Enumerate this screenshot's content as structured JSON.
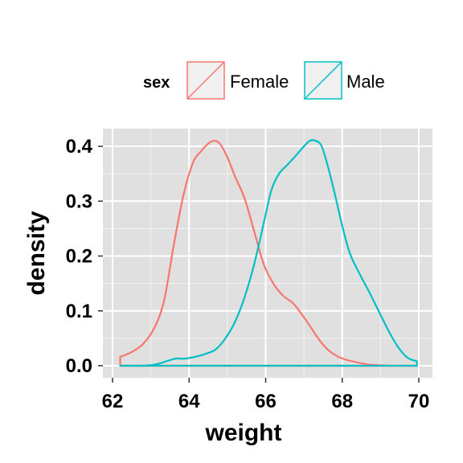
{
  "chart_data": {
    "type": "area",
    "xlabel": "weight",
    "ylabel": "density",
    "xlim": [
      62,
      70
    ],
    "ylim": [
      0,
      0.42
    ],
    "x_ticks": [
      "62",
      "64",
      "66",
      "68",
      "70"
    ],
    "y_ticks": [
      "0.0",
      "0.1",
      "0.2",
      "0.3",
      "0.4"
    ],
    "grid": true,
    "panel_background": "#e0e0e0",
    "legend": {
      "title": "sex",
      "position": "top"
    },
    "series": [
      {
        "name": "Female",
        "color": "#f8766d",
        "points": [
          [
            62.2,
            0.016
          ],
          [
            62.5,
            0.025
          ],
          [
            62.8,
            0.04
          ],
          [
            63.1,
            0.07
          ],
          [
            63.35,
            0.12
          ],
          [
            63.6,
            0.22
          ],
          [
            63.85,
            0.31
          ],
          [
            64.1,
            0.37
          ],
          [
            64.3,
            0.39
          ],
          [
            64.5,
            0.405
          ],
          [
            64.65,
            0.41
          ],
          [
            64.8,
            0.405
          ],
          [
            65.0,
            0.38
          ],
          [
            65.2,
            0.345
          ],
          [
            65.45,
            0.305
          ],
          [
            65.7,
            0.245
          ],
          [
            65.95,
            0.185
          ],
          [
            66.2,
            0.15
          ],
          [
            66.45,
            0.128
          ],
          [
            66.7,
            0.115
          ],
          [
            66.9,
            0.098
          ],
          [
            67.15,
            0.073
          ],
          [
            67.4,
            0.047
          ],
          [
            67.6,
            0.031
          ],
          [
            67.85,
            0.018
          ],
          [
            68.1,
            0.011
          ],
          [
            68.4,
            0.006
          ],
          [
            68.7,
            0.002
          ],
          [
            69.0,
            0.001
          ],
          [
            69.3,
            0.0
          ],
          [
            69.95,
            0.0
          ]
        ]
      },
      {
        "name": "Male",
        "color": "#00bfc4",
        "points": [
          [
            62.2,
            0.0
          ],
          [
            62.8,
            0.0
          ],
          [
            63.1,
            0.002
          ],
          [
            63.4,
            0.008
          ],
          [
            63.65,
            0.013
          ],
          [
            63.9,
            0.013
          ],
          [
            64.2,
            0.017
          ],
          [
            64.45,
            0.022
          ],
          [
            64.7,
            0.03
          ],
          [
            64.95,
            0.05
          ],
          [
            65.2,
            0.08
          ],
          [
            65.45,
            0.125
          ],
          [
            65.7,
            0.185
          ],
          [
            65.95,
            0.26
          ],
          [
            66.15,
            0.32
          ],
          [
            66.35,
            0.35
          ],
          [
            66.55,
            0.365
          ],
          [
            66.75,
            0.38
          ],
          [
            66.95,
            0.396
          ],
          [
            67.15,
            0.41
          ],
          [
            67.3,
            0.41
          ],
          [
            67.45,
            0.402
          ],
          [
            67.6,
            0.37
          ],
          [
            67.8,
            0.315
          ],
          [
            68.0,
            0.255
          ],
          [
            68.2,
            0.205
          ],
          [
            68.45,
            0.168
          ],
          [
            68.7,
            0.135
          ],
          [
            68.95,
            0.1
          ],
          [
            69.2,
            0.065
          ],
          [
            69.45,
            0.035
          ],
          [
            69.7,
            0.015
          ],
          [
            69.95,
            0.008
          ]
        ]
      }
    ]
  }
}
